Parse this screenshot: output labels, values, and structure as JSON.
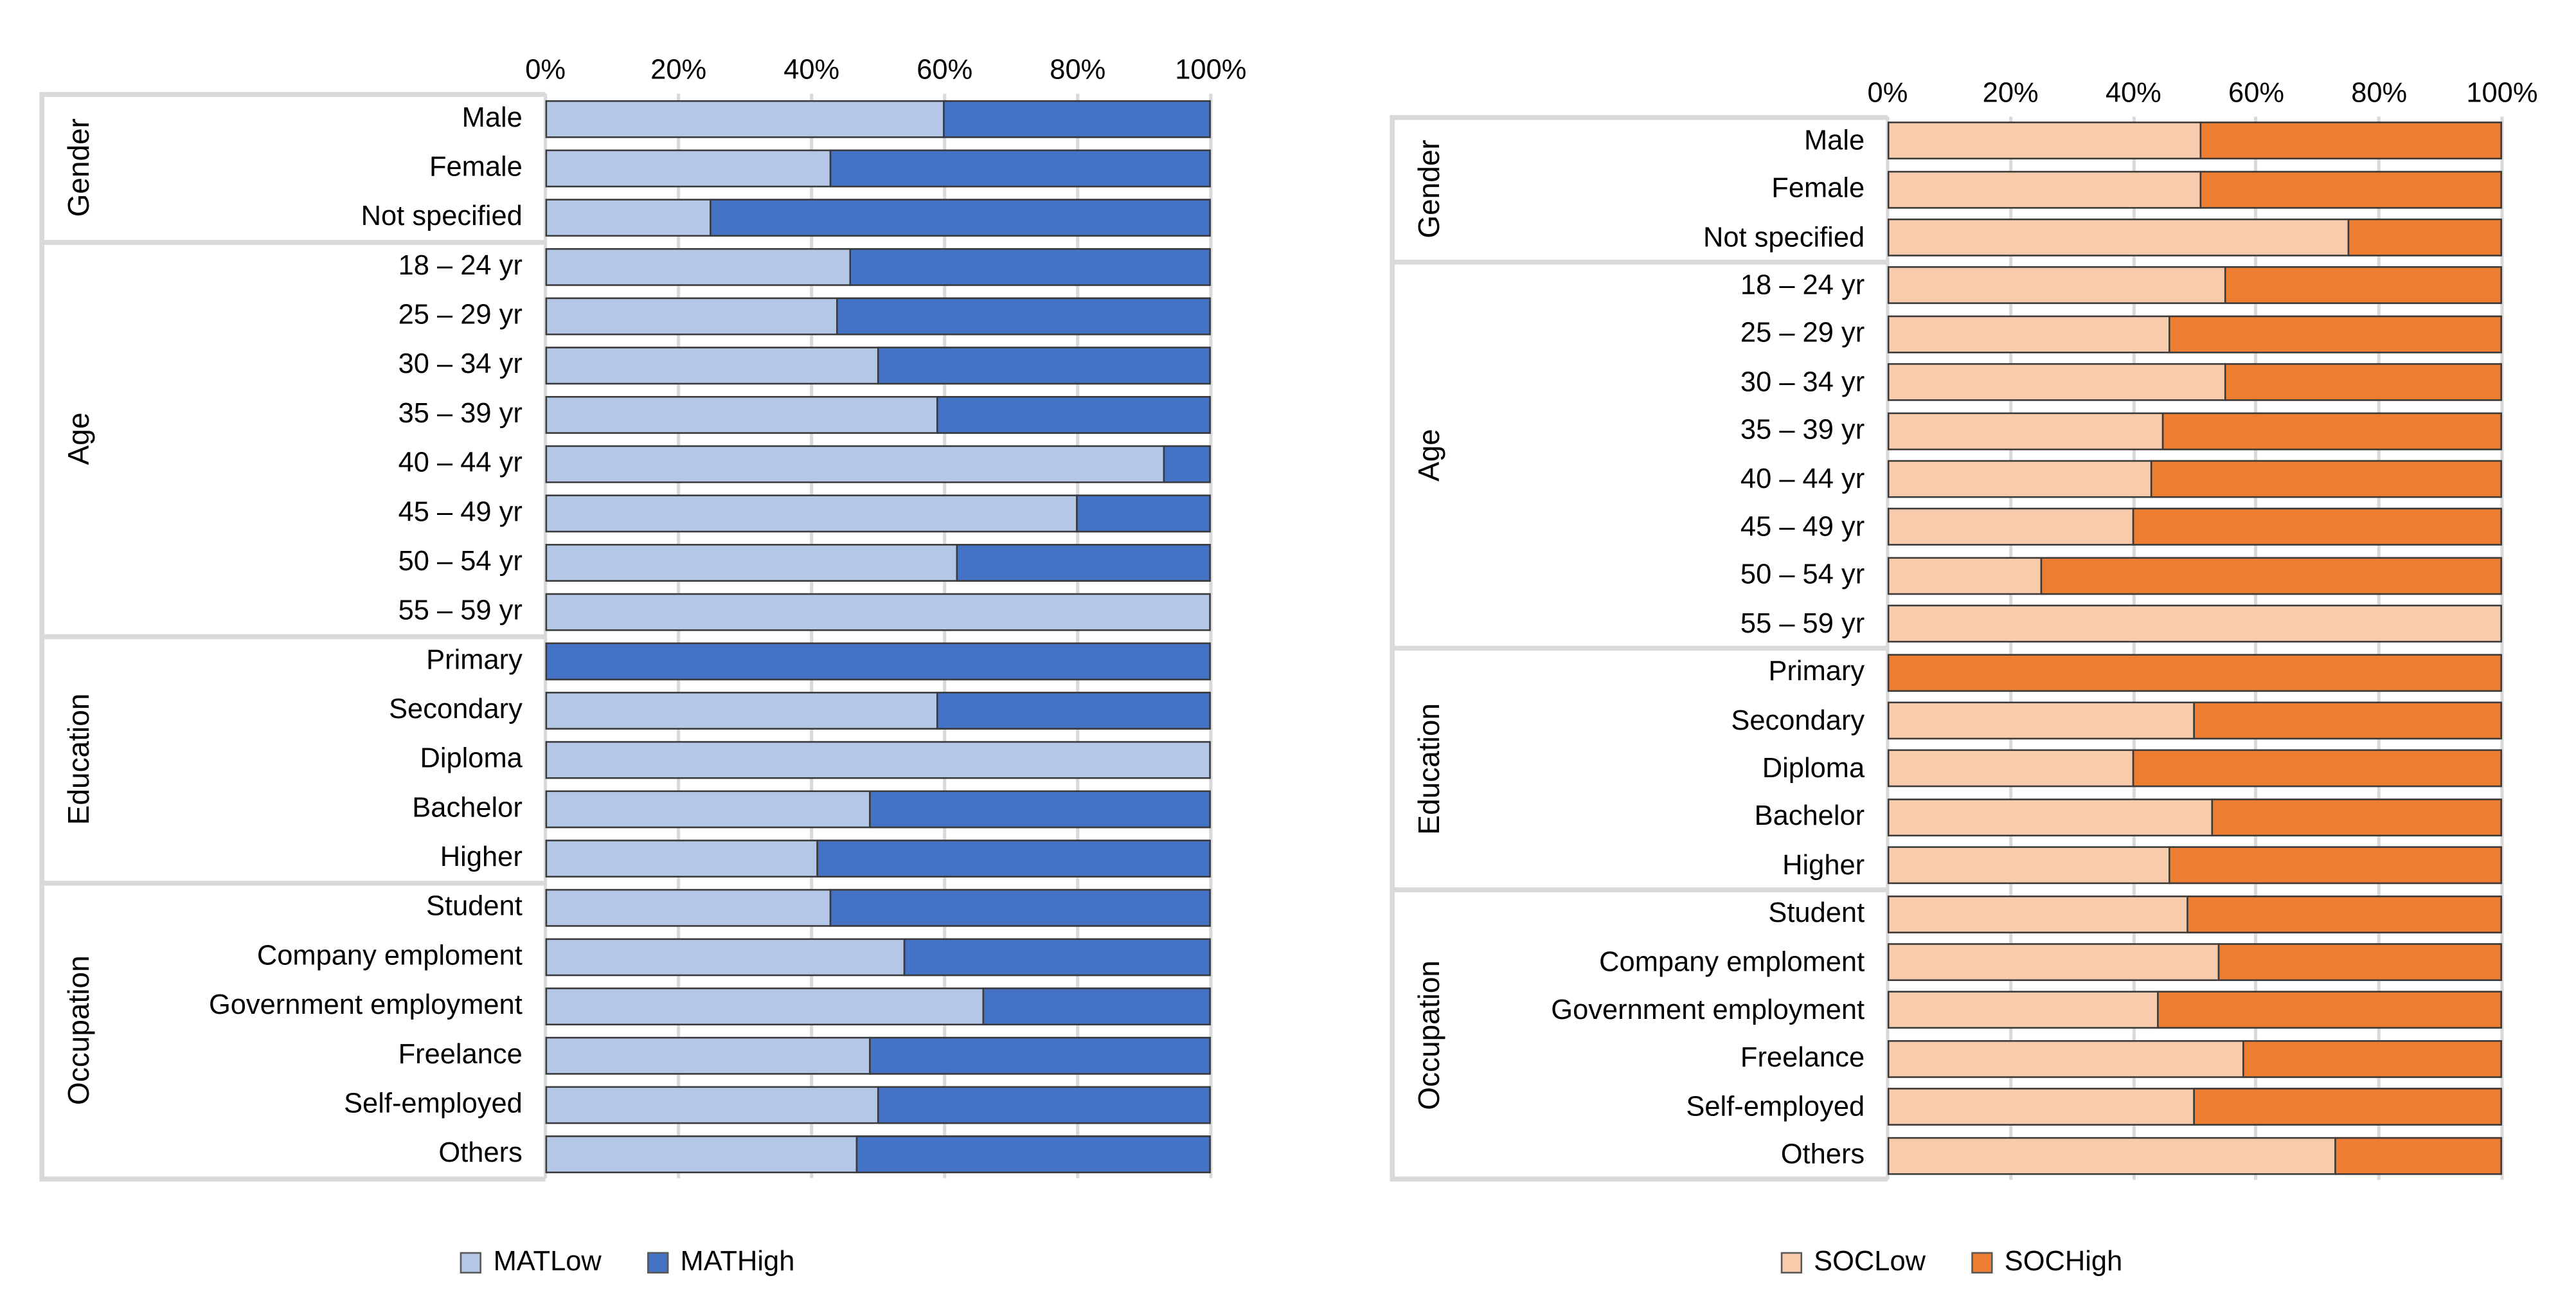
{
  "page": {
    "background": "#ffffff"
  },
  "styles": {
    "bar_border": "#3a3a3a",
    "gridline": "#d9d9d9",
    "separator": "#d9d9d9",
    "text": "#000000"
  },
  "chart_data": [
    {
      "name": "mat",
      "type": "bar",
      "stacked": true,
      "orientation": "horizontal",
      "title": "",
      "x_axis": {
        "ticks": [
          "0%",
          "20%",
          "40%",
          "60%",
          "80%",
          "100%"
        ],
        "range": [
          0,
          100
        ],
        "grid": true
      },
      "legend_position": "bottom",
      "categories": [
        "Male",
        "Female",
        "Not specified",
        "18 – 24 yr",
        "25 – 29 yr",
        "30 – 34 yr",
        "35 – 39 yr",
        "40 – 44 yr",
        "45 – 49 yr",
        "50 – 54 yr",
        "55 – 59 yr",
        "Primary",
        "Secondary",
        "Diploma",
        "Bachelor",
        "Higher",
        "Student",
        "Company emploment",
        "Government employment",
        "Freelance",
        "Self-employed",
        "Others"
      ],
      "category_groups": [
        {
          "label": "Gender",
          "count": 3
        },
        {
          "label": "Age",
          "count": 8
        },
        {
          "label": "Education",
          "count": 5
        },
        {
          "label": "Occupation",
          "count": 6
        }
      ],
      "series": [
        {
          "name": "MATLow",
          "color": "#b4c7e7",
          "values": [
            60,
            43,
            25,
            46,
            44,
            50,
            59,
            93,
            80,
            62,
            100,
            0,
            59,
            100,
            49,
            41,
            43,
            54,
            66,
            49,
            50,
            47
          ]
        },
        {
          "name": "MATHigh",
          "color": "#4472c4",
          "values": [
            40,
            57,
            75,
            54,
            56,
            50,
            41,
            7,
            20,
            38,
            0,
            100,
            41,
            0,
            51,
            59,
            57,
            46,
            34,
            51,
            50,
            53
          ]
        }
      ]
    },
    {
      "name": "soc",
      "type": "bar",
      "stacked": true,
      "orientation": "horizontal",
      "title": "",
      "x_axis": {
        "ticks": [
          "0%",
          "20%",
          "40%",
          "60%",
          "80%",
          "100%"
        ],
        "range": [
          0,
          100
        ],
        "grid": true
      },
      "legend_position": "bottom",
      "categories": [
        "Male",
        "Female",
        "Not specified",
        "18 – 24 yr",
        "25 – 29 yr",
        "30 – 34 yr",
        "35 – 39 yr",
        "40 – 44 yr",
        "45 – 49 yr",
        "50 – 54 yr",
        "55 – 59 yr",
        "Primary",
        "Secondary",
        "Diploma",
        "Bachelor",
        "Higher",
        "Student",
        "Company emploment",
        "Government employment",
        "Freelance",
        "Self-employed",
        "Others"
      ],
      "category_groups": [
        {
          "label": "Gender",
          "count": 3
        },
        {
          "label": "Age",
          "count": 8
        },
        {
          "label": "Education",
          "count": 5
        },
        {
          "label": "Occupation",
          "count": 6
        }
      ],
      "series": [
        {
          "name": "SOCLow",
          "color": "#f8cbad",
          "values": [
            51,
            51,
            75,
            55,
            46,
            55,
            45,
            43,
            40,
            25,
            100,
            0,
            50,
            40,
            53,
            46,
            49,
            54,
            44,
            58,
            50,
            73
          ]
        },
        {
          "name": "SOCHigh",
          "color": "#ed7d31",
          "values": [
            49,
            49,
            25,
            45,
            54,
            45,
            55,
            57,
            60,
            75,
            0,
            100,
            50,
            60,
            47,
            54,
            51,
            46,
            56,
            42,
            50,
            27
          ]
        }
      ]
    }
  ]
}
